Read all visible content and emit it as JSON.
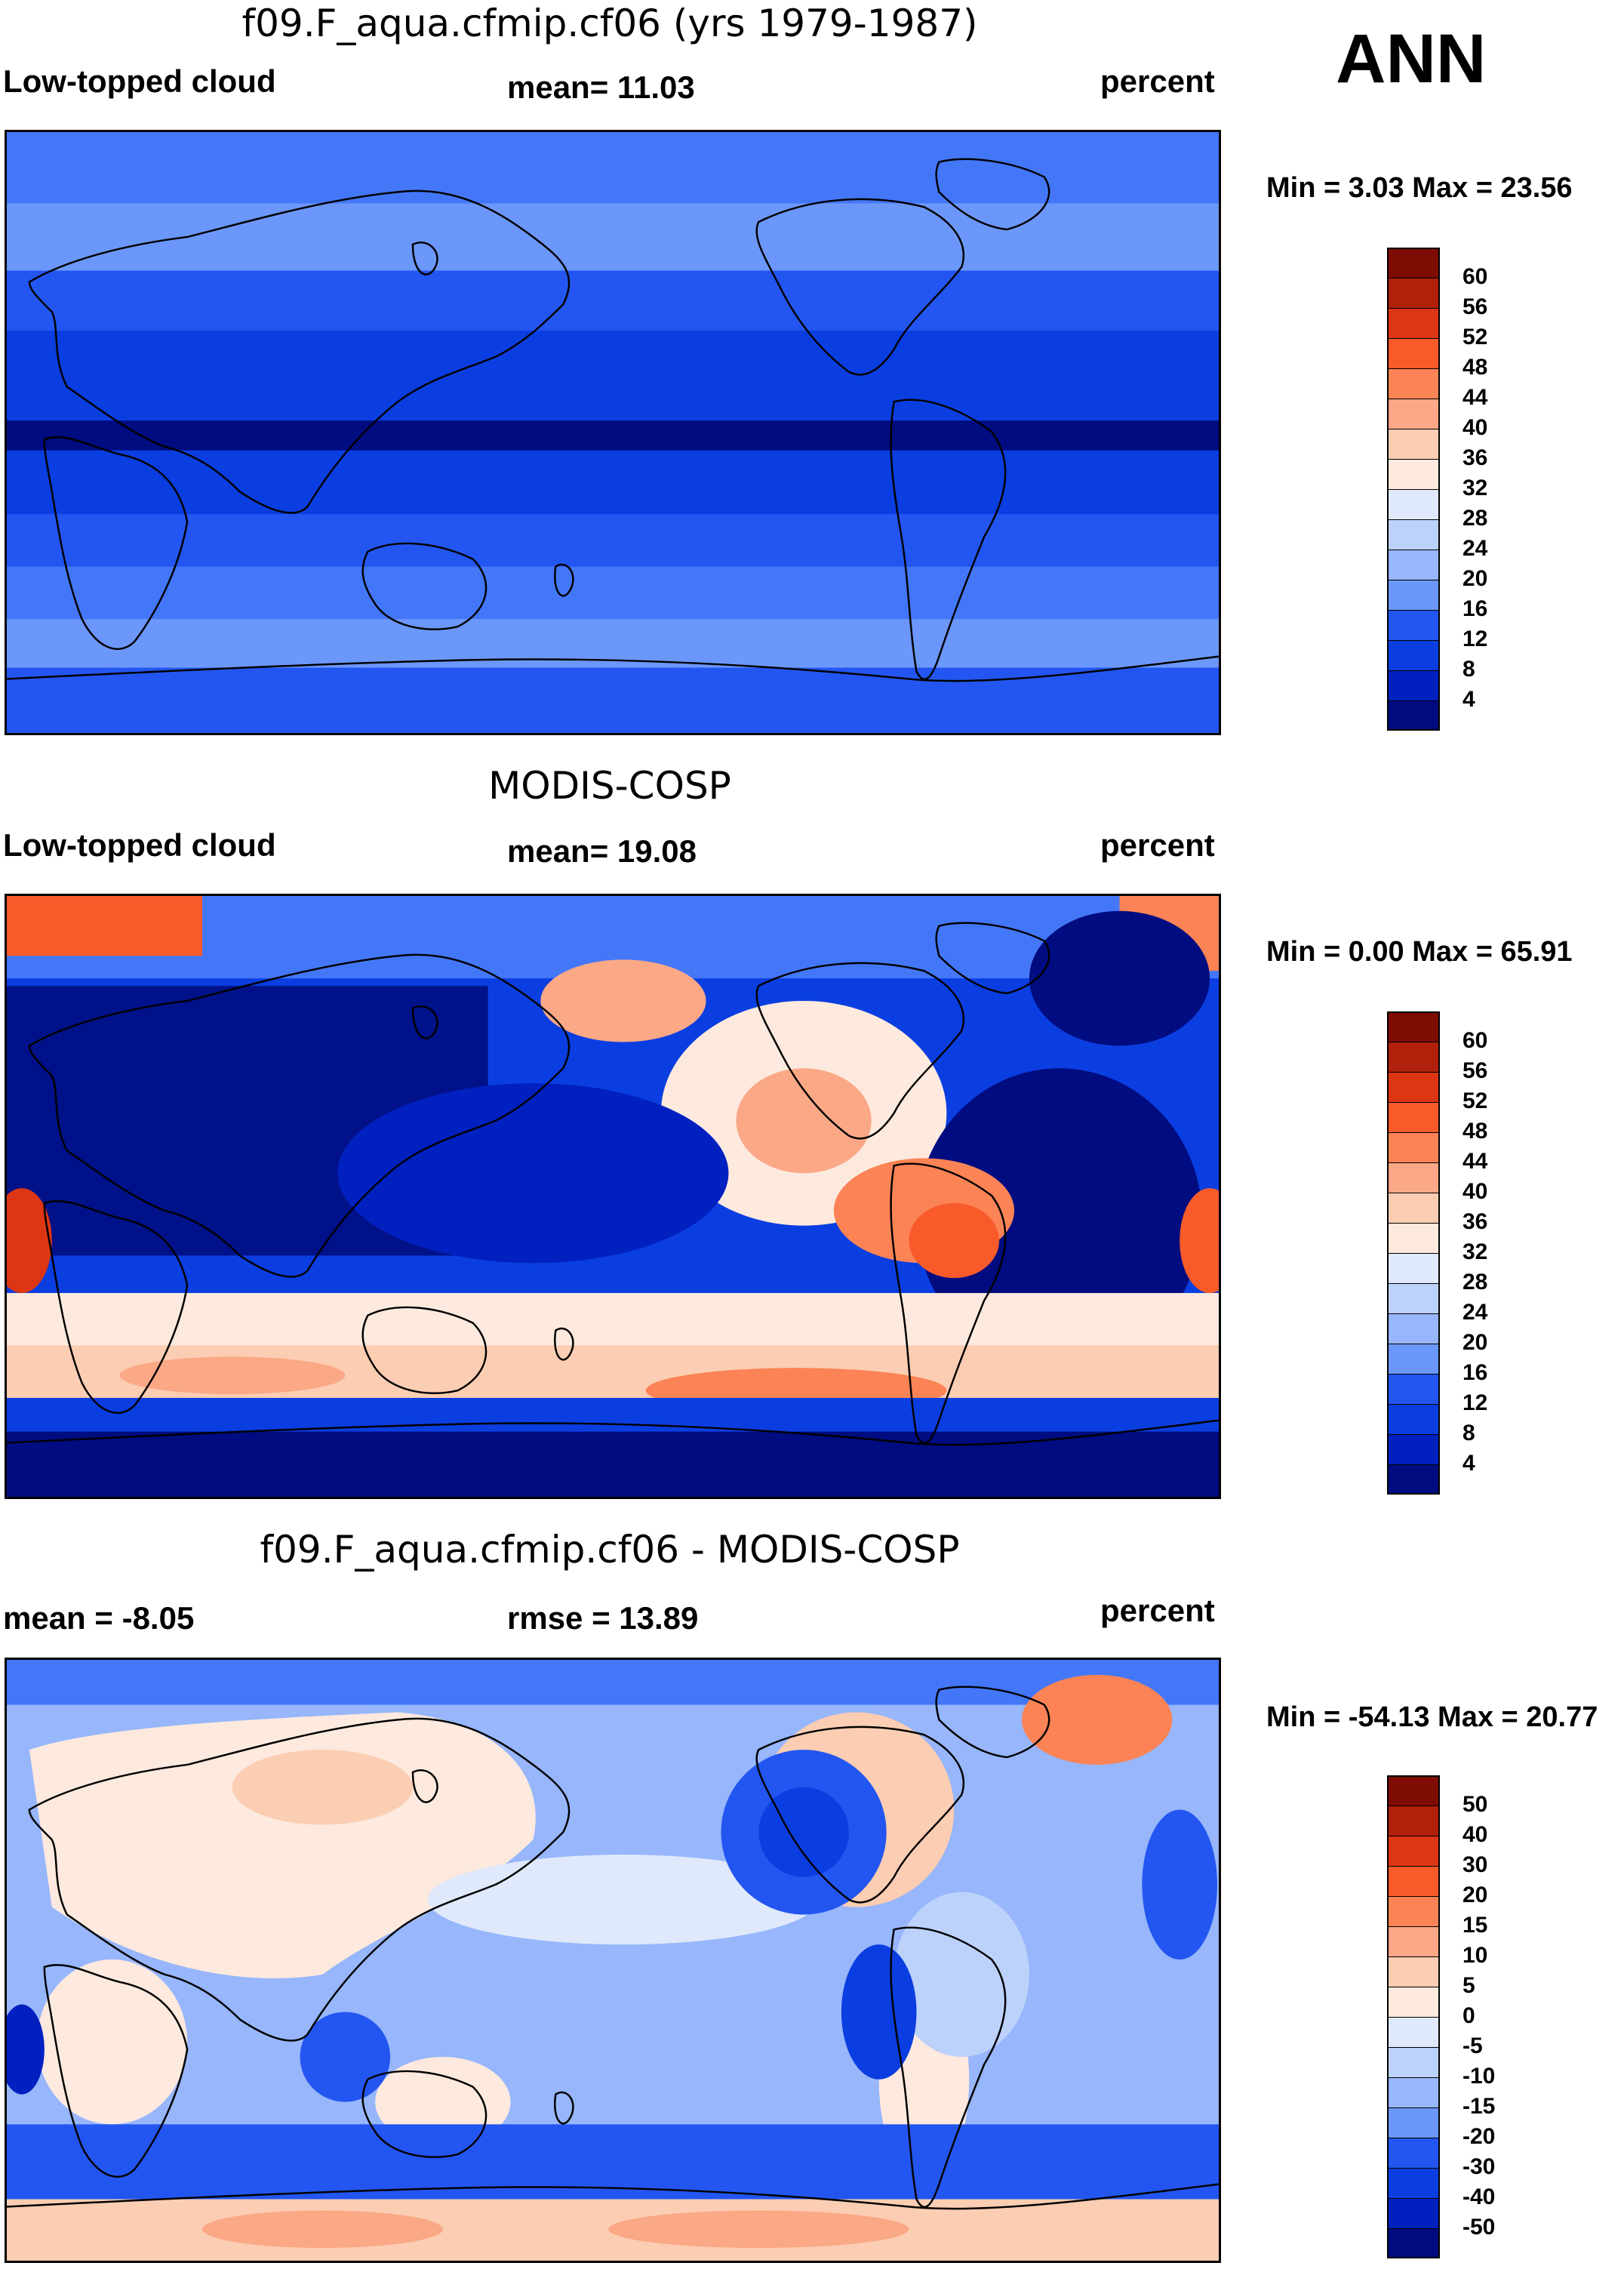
{
  "season": "ANN",
  "panels": [
    {
      "title": "f09.F_aqua.cfmip.cf06 (yrs 1979-1987)",
      "left_label": "Low-topped cloud",
      "center_label": "mean=  11.03",
      "right_label": "percent",
      "minmax": "Min =   3.03 Max =  23.56",
      "colorbar_ticks": [
        "60",
        "56",
        "52",
        "48",
        "44",
        "40",
        "36",
        "32",
        "28",
        "24",
        "20",
        "16",
        "12",
        "8",
        "4"
      ]
    },
    {
      "title": "MODIS-COSP",
      "left_label": "Low-topped cloud",
      "center_label": "mean=  19.08",
      "right_label": "percent",
      "minmax": "Min =   0.00 Max =  65.91",
      "colorbar_ticks": [
        "60",
        "56",
        "52",
        "48",
        "44",
        "40",
        "36",
        "32",
        "28",
        "24",
        "20",
        "16",
        "12",
        "8",
        "4"
      ]
    },
    {
      "title": "f09.F_aqua.cfmip.cf06 - MODIS-COSP",
      "left_label": "mean =  -8.05",
      "center_label": "rmse =  13.89",
      "right_label": "percent",
      "minmax": "Min = -54.13 Max =  20.77",
      "colorbar_ticks": [
        "50",
        "40",
        "30",
        "20",
        "15",
        "10",
        "5",
        "0",
        "-5",
        "-10",
        "-15",
        "-20",
        "-30",
        "-40",
        "-50"
      ]
    }
  ],
  "chart_data": [
    {
      "type": "heatmap",
      "title": "f09.F_aqua.cfmip.cf06 (yrs 1979-1987)",
      "variable": "Low-topped cloud",
      "units": "percent",
      "mean": 11.03,
      "min": 3.03,
      "max": 23.56,
      "levels": [
        4,
        8,
        12,
        16,
        20,
        24,
        28,
        32,
        36,
        40,
        44,
        48,
        52,
        56,
        60
      ]
    },
    {
      "type": "heatmap",
      "title": "MODIS-COSP",
      "variable": "Low-topped cloud",
      "units": "percent",
      "mean": 19.08,
      "min": 0.0,
      "max": 65.91,
      "levels": [
        4,
        8,
        12,
        16,
        20,
        24,
        28,
        32,
        36,
        40,
        44,
        48,
        52,
        56,
        60
      ]
    },
    {
      "type": "heatmap",
      "title": "f09.F_aqua.cfmip.cf06 - MODIS-COSP",
      "units": "percent",
      "mean": -8.05,
      "rmse": 13.89,
      "min": -54.13,
      "max": 20.77,
      "levels": [
        -50,
        -40,
        -30,
        -20,
        -15,
        -10,
        -5,
        0,
        5,
        10,
        15,
        20,
        30,
        40,
        50
      ]
    }
  ],
  "colors": {
    "scale": [
      "#000c80",
      "#0020c0",
      "#0a3ee0",
      "#2356f0",
      "#4477f8",
      "#6c97fa",
      "#97b6fb",
      "#bdd2fb",
      "#dfe9fb",
      "#fde9de",
      "#fbcdb2",
      "#fba887",
      "#fb8355",
      "#f95a2a",
      "#dd3614",
      "#b0200a",
      "#7e0c04"
    ]
  }
}
